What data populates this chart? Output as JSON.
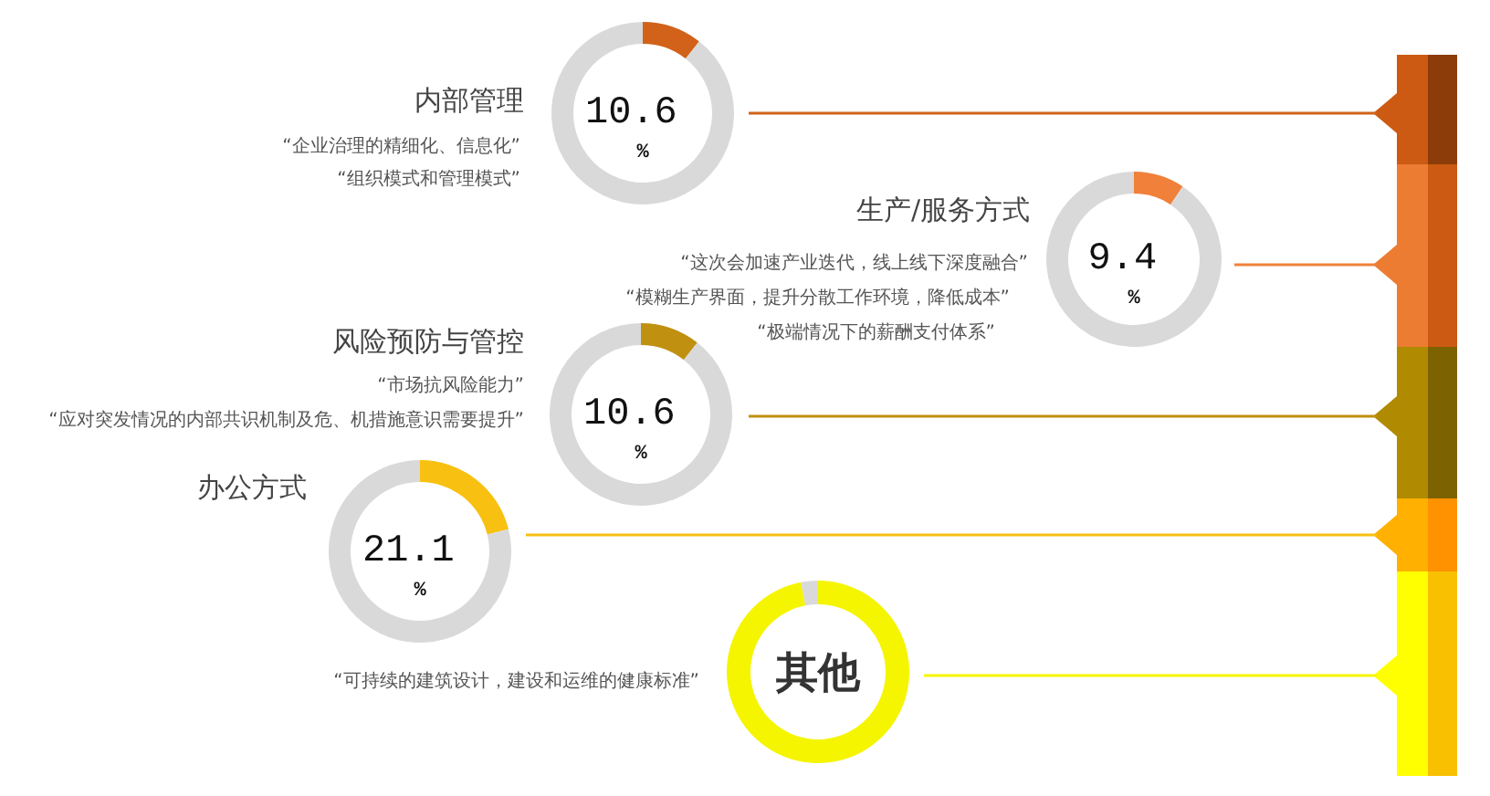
{
  "chart_data": [
    {
      "type": "donut",
      "title": "内部管理",
      "categories": [
        null,
        null
      ],
      "values": [
        10.6,
        89.4
      ],
      "colors": [
        "#d2621a",
        "#d9d9d9"
      ],
      "annotations": [
        "10.6 %",
        "“企业治理的精细化、信息化”",
        "“组织模式和管理模式”"
      ]
    },
    {
      "type": "donut",
      "title": "生产/服务方式",
      "categories": [
        null,
        null
      ],
      "values": [
        9.4,
        90.6
      ],
      "colors": [
        "#f0803a",
        "#d9d9d9"
      ],
      "annotations": [
        "9.4 %",
        "“这次会加速产业迭代，线上线下深度融合”",
        "“模糊生产界面，提升分散工作环境，降低成本”",
        "“极端情况下的薪酬支付体系”"
      ]
    },
    {
      "type": "donut",
      "title": "风险预防与管控",
      "categories": [
        null,
        null
      ],
      "values": [
        10.6,
        89.4
      ],
      "colors": [
        "#c09010",
        "#d9d9d9"
      ],
      "annotations": [
        "10.6 %",
        "“市场抗风险能力”",
        "“应对突发情况的内部共识机制及危、机措施意识需要提升”"
      ]
    },
    {
      "type": "donut",
      "title": "办公方式",
      "categories": [
        null,
        null
      ],
      "values": [
        21.1,
        78.9
      ],
      "colors": [
        "#f8c010",
        "#d9d9d9"
      ],
      "annotations": [
        "21.1 %"
      ]
    },
    {
      "type": "donut",
      "title": "其他",
      "categories": [
        null,
        null
      ],
      "values": [
        97,
        3
      ],
      "colors": [
        "#f5f500",
        "#d9d9d9"
      ],
      "annotations": [
        "“可持续的建筑设计，建设和运维的健康标准”"
      ]
    }
  ]
}
